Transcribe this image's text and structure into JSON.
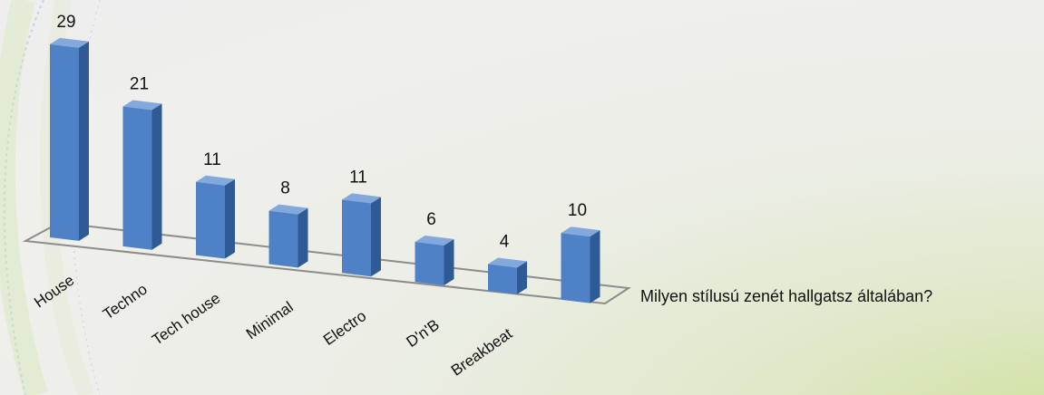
{
  "chart_data": {
    "type": "bar",
    "categories": [
      "House",
      "Techno",
      "Tech house",
      "Minimal",
      "Electro",
      "D'n'B",
      "Breakbeat",
      ""
    ],
    "values": [
      29,
      21,
      11,
      8,
      11,
      6,
      4,
      10
    ],
    "value_labels": [
      "29",
      "21",
      "11",
      "8",
      "11",
      "6",
      "4",
      "10"
    ],
    "xlabel": "Milyen stílusú zenét hallgatsz általában?",
    "ylabel": "",
    "style": "3d-column",
    "grid": false,
    "legend": "none",
    "colors": {
      "bar_front": "#4f81c7",
      "bar_side": "#2e5a96",
      "bar_top": "#82a8dc",
      "floor_edge": "#8c8c8c"
    }
  }
}
